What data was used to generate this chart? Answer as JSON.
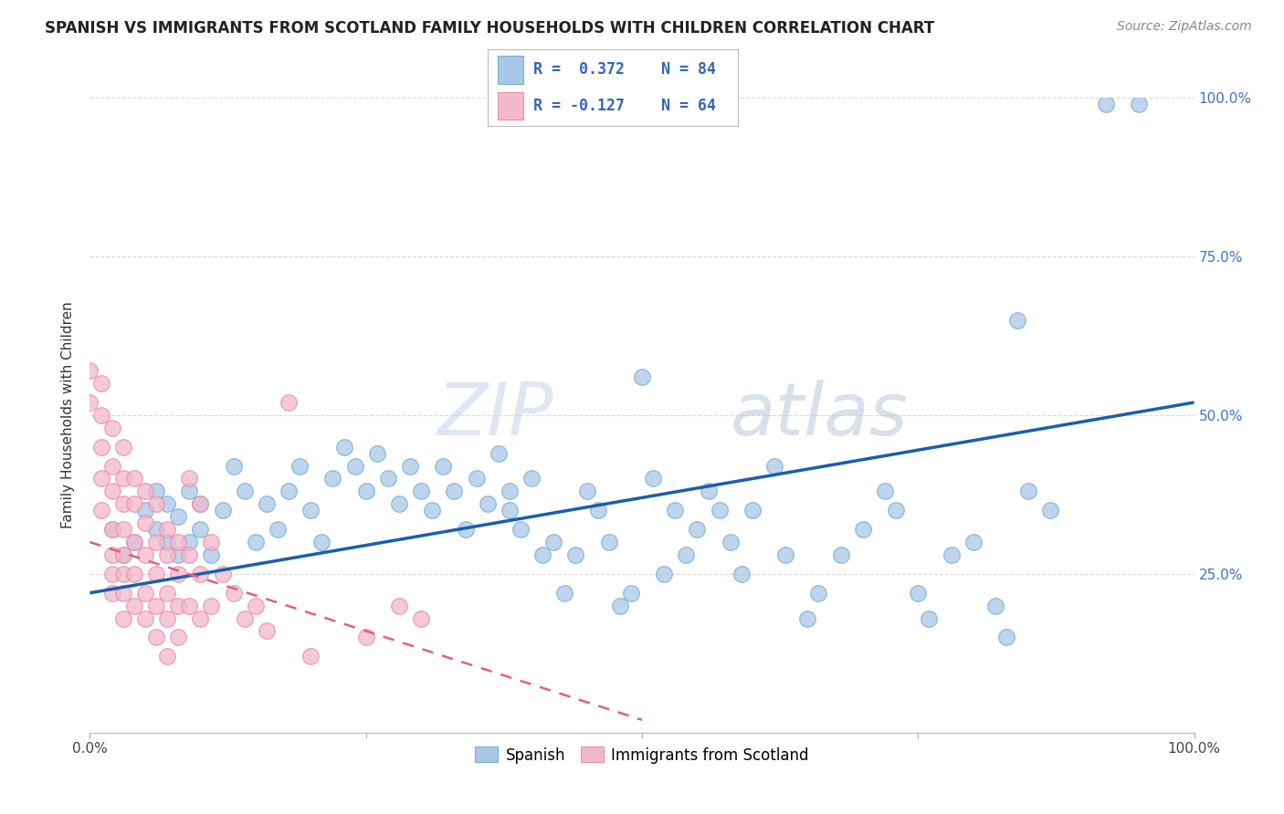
{
  "title": "SPANISH VS IMMIGRANTS FROM SCOTLAND FAMILY HOUSEHOLDS WITH CHILDREN CORRELATION CHART",
  "source": "Source: ZipAtlas.com",
  "ylabel": "Family Households with Children",
  "xlabel": "",
  "xlim": [
    0,
    1
  ],
  "ylim": [
    0,
    1
  ],
  "xticks": [
    0,
    1.0
  ],
  "xticklabels": [
    "0.0%",
    "100.0%"
  ],
  "yticks": [
    0,
    0.25,
    0.5,
    0.75,
    1.0
  ],
  "yticklabels_right": [
    "",
    "25.0%",
    "50.0%",
    "75.0%",
    "100.0%"
  ],
  "legend1_label": "Spanish",
  "legend2_label": "Immigrants from Scotland",
  "R1": 0.372,
  "N1": 84,
  "R2": -0.127,
  "N2": 64,
  "color_blue": "#a8c8e8",
  "color_pink": "#f4b8cc",
  "color_blue_edge": "#7aafd4",
  "color_pink_edge": "#e890a8",
  "color_blue_line": "#1a5fa8",
  "color_pink_line": "#e06080",
  "watermark_color": "#d0dce8",
  "background_color": "#ffffff",
  "grid_color": "#d8d8d8",
  "blue_scatter": [
    [
      0.02,
      0.32
    ],
    [
      0.03,
      0.28
    ],
    [
      0.04,
      0.3
    ],
    [
      0.05,
      0.35
    ],
    [
      0.06,
      0.38
    ],
    [
      0.06,
      0.32
    ],
    [
      0.07,
      0.36
    ],
    [
      0.07,
      0.3
    ],
    [
      0.08,
      0.28
    ],
    [
      0.08,
      0.34
    ],
    [
      0.09,
      0.3
    ],
    [
      0.09,
      0.38
    ],
    [
      0.1,
      0.32
    ],
    [
      0.1,
      0.36
    ],
    [
      0.11,
      0.28
    ],
    [
      0.12,
      0.35
    ],
    [
      0.13,
      0.42
    ],
    [
      0.14,
      0.38
    ],
    [
      0.15,
      0.3
    ],
    [
      0.16,
      0.36
    ],
    [
      0.17,
      0.32
    ],
    [
      0.18,
      0.38
    ],
    [
      0.19,
      0.42
    ],
    [
      0.2,
      0.35
    ],
    [
      0.21,
      0.3
    ],
    [
      0.22,
      0.4
    ],
    [
      0.23,
      0.45
    ],
    [
      0.24,
      0.42
    ],
    [
      0.25,
      0.38
    ],
    [
      0.26,
      0.44
    ],
    [
      0.27,
      0.4
    ],
    [
      0.28,
      0.36
    ],
    [
      0.29,
      0.42
    ],
    [
      0.3,
      0.38
    ],
    [
      0.31,
      0.35
    ],
    [
      0.32,
      0.42
    ],
    [
      0.33,
      0.38
    ],
    [
      0.34,
      0.32
    ],
    [
      0.35,
      0.4
    ],
    [
      0.36,
      0.36
    ],
    [
      0.37,
      0.44
    ],
    [
      0.38,
      0.35
    ],
    [
      0.38,
      0.38
    ],
    [
      0.39,
      0.32
    ],
    [
      0.4,
      0.4
    ],
    [
      0.41,
      0.28
    ],
    [
      0.42,
      0.3
    ],
    [
      0.43,
      0.22
    ],
    [
      0.44,
      0.28
    ],
    [
      0.45,
      0.38
    ],
    [
      0.46,
      0.35
    ],
    [
      0.47,
      0.3
    ],
    [
      0.48,
      0.2
    ],
    [
      0.49,
      0.22
    ],
    [
      0.5,
      0.56
    ],
    [
      0.51,
      0.4
    ],
    [
      0.52,
      0.25
    ],
    [
      0.53,
      0.35
    ],
    [
      0.54,
      0.28
    ],
    [
      0.55,
      0.32
    ],
    [
      0.56,
      0.38
    ],
    [
      0.57,
      0.35
    ],
    [
      0.58,
      0.3
    ],
    [
      0.59,
      0.25
    ],
    [
      0.6,
      0.35
    ],
    [
      0.62,
      0.42
    ],
    [
      0.63,
      0.28
    ],
    [
      0.65,
      0.18
    ],
    [
      0.66,
      0.22
    ],
    [
      0.68,
      0.28
    ],
    [
      0.7,
      0.32
    ],
    [
      0.72,
      0.38
    ],
    [
      0.73,
      0.35
    ],
    [
      0.75,
      0.22
    ],
    [
      0.76,
      0.18
    ],
    [
      0.78,
      0.28
    ],
    [
      0.8,
      0.3
    ],
    [
      0.82,
      0.2
    ],
    [
      0.83,
      0.15
    ],
    [
      0.84,
      0.65
    ],
    [
      0.85,
      0.38
    ],
    [
      0.87,
      0.35
    ],
    [
      0.92,
      0.99
    ],
    [
      0.95,
      0.99
    ]
  ],
  "pink_scatter": [
    [
      0.0,
      0.52
    ],
    [
      0.0,
      0.57
    ],
    [
      0.01,
      0.45
    ],
    [
      0.01,
      0.55
    ],
    [
      0.01,
      0.5
    ],
    [
      0.01,
      0.4
    ],
    [
      0.01,
      0.35
    ],
    [
      0.02,
      0.48
    ],
    [
      0.02,
      0.42
    ],
    [
      0.02,
      0.38
    ],
    [
      0.02,
      0.32
    ],
    [
      0.02,
      0.28
    ],
    [
      0.02,
      0.25
    ],
    [
      0.02,
      0.22
    ],
    [
      0.03,
      0.45
    ],
    [
      0.03,
      0.4
    ],
    [
      0.03,
      0.36
    ],
    [
      0.03,
      0.32
    ],
    [
      0.03,
      0.28
    ],
    [
      0.03,
      0.25
    ],
    [
      0.03,
      0.22
    ],
    [
      0.03,
      0.18
    ],
    [
      0.04,
      0.4
    ],
    [
      0.04,
      0.36
    ],
    [
      0.04,
      0.3
    ],
    [
      0.04,
      0.25
    ],
    [
      0.04,
      0.2
    ],
    [
      0.05,
      0.38
    ],
    [
      0.05,
      0.33
    ],
    [
      0.05,
      0.28
    ],
    [
      0.05,
      0.22
    ],
    [
      0.05,
      0.18
    ],
    [
      0.06,
      0.36
    ],
    [
      0.06,
      0.3
    ],
    [
      0.06,
      0.25
    ],
    [
      0.06,
      0.2
    ],
    [
      0.06,
      0.15
    ],
    [
      0.07,
      0.32
    ],
    [
      0.07,
      0.28
    ],
    [
      0.07,
      0.22
    ],
    [
      0.07,
      0.18
    ],
    [
      0.07,
      0.12
    ],
    [
      0.08,
      0.3
    ],
    [
      0.08,
      0.25
    ],
    [
      0.08,
      0.2
    ],
    [
      0.08,
      0.15
    ],
    [
      0.09,
      0.4
    ],
    [
      0.09,
      0.28
    ],
    [
      0.09,
      0.2
    ],
    [
      0.1,
      0.36
    ],
    [
      0.1,
      0.25
    ],
    [
      0.1,
      0.18
    ],
    [
      0.11,
      0.3
    ],
    [
      0.11,
      0.2
    ],
    [
      0.12,
      0.25
    ],
    [
      0.13,
      0.22
    ],
    [
      0.14,
      0.18
    ],
    [
      0.15,
      0.2
    ],
    [
      0.16,
      0.16
    ],
    [
      0.18,
      0.52
    ],
    [
      0.2,
      0.12
    ],
    [
      0.25,
      0.15
    ],
    [
      0.28,
      0.2
    ],
    [
      0.3,
      0.18
    ]
  ],
  "blue_line_x": [
    0.0,
    1.0
  ],
  "blue_line_y": [
    0.22,
    0.52
  ],
  "pink_line_x": [
    0.0,
    0.5
  ],
  "pink_line_y": [
    0.3,
    0.02
  ]
}
